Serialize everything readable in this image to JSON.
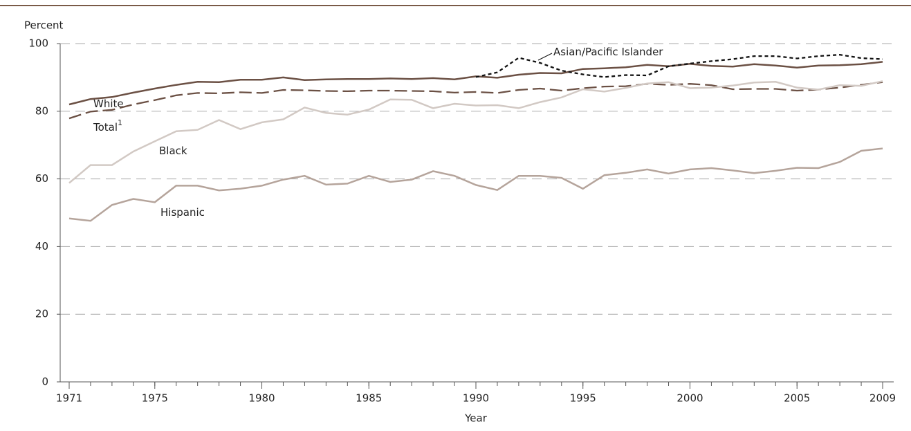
{
  "chart_data": {
    "type": "line",
    "y_label": "Percent",
    "x_label": "Year",
    "x": [
      1971,
      1972,
      1973,
      1974,
      1975,
      1976,
      1977,
      1978,
      1979,
      1980,
      1981,
      1982,
      1983,
      1984,
      1985,
      1986,
      1987,
      1988,
      1989,
      1990,
      1991,
      1992,
      1993,
      1994,
      1995,
      1996,
      1997,
      1998,
      1999,
      2000,
      2001,
      2002,
      2003,
      2004,
      2005,
      2006,
      2007,
      2008,
      2009
    ],
    "xlim": [
      1971,
      2009
    ],
    "xticks": [
      1971,
      1975,
      1980,
      1985,
      1990,
      1995,
      2000,
      2005,
      2009
    ],
    "ylim": [
      0,
      100
    ],
    "yticks": [
      0,
      20,
      40,
      60,
      80,
      100
    ],
    "grid": true,
    "series": [
      {
        "name": "White",
        "color": "#6b5044",
        "dash": "solid",
        "values": [
          82,
          83.6,
          84.2,
          85.5,
          86.7,
          87.8,
          88.7,
          88.6,
          89.3,
          89.3,
          90,
          89.2,
          89.4,
          89.5,
          89.5,
          89.7,
          89.5,
          89.8,
          89.4,
          90.3,
          89.9,
          90.8,
          91.3,
          91.2,
          92.5,
          92.7,
          93,
          93.7,
          93.3,
          94,
          93.4,
          93.2,
          93.9,
          93.5,
          92.9,
          93.5,
          93.6,
          93.9,
          94.6
        ]
      },
      {
        "name": "Total",
        "note": "1",
        "color": "#6b5044",
        "dash": "dashed",
        "values": [
          77.9,
          79.9,
          80.4,
          82,
          83.3,
          84.7,
          85.4,
          85.3,
          85.6,
          85.4,
          86.3,
          86.2,
          86,
          85.9,
          86.1,
          86.1,
          86,
          85.9,
          85.5,
          85.7,
          85.4,
          86.3,
          86.7,
          86.1,
          86.8,
          87.3,
          87.4,
          88.1,
          87.8,
          88.1,
          87.7,
          86.5,
          86.6,
          86.6,
          86.1,
          86.4,
          87,
          87.8,
          88.6
        ]
      },
      {
        "name": "Black",
        "color": "#d2c9c4",
        "dash": "solid",
        "values": [
          58.8,
          64.1,
          64.1,
          68.1,
          71.1,
          74.1,
          74.5,
          77.4,
          74.7,
          76.7,
          77.6,
          81.1,
          79.5,
          79,
          80.5,
          83.5,
          83.4,
          80.9,
          82.2,
          81.7,
          81.8,
          80.9,
          82.7,
          84.1,
          86.5,
          85.8,
          86.9,
          88.2,
          88.6,
          86.8,
          87,
          87.6,
          88.5,
          88.7,
          87,
          86.4,
          87.7,
          87.5,
          88.9
        ]
      },
      {
        "name": "Hispanic",
        "color": "#b5a49b",
        "dash": "solid",
        "values": [
          48.3,
          47.6,
          52.3,
          54.1,
          53.1,
          58,
          58,
          56.6,
          57.1,
          58,
          59.8,
          60.9,
          58.3,
          58.6,
          60.9,
          59.1,
          59.8,
          62.3,
          60.9,
          58.2,
          56.7,
          60.9,
          60.9,
          60.3,
          57.1,
          61.1,
          61.8,
          62.8,
          61.6,
          62.8,
          63.2,
          62.5,
          61.7,
          62.4,
          63.3,
          63.2,
          65,
          68.3,
          69
        ]
      },
      {
        "name": "Asian/Pacific Islander",
        "color": "#111111",
        "dash": "dotted",
        "values": [
          null,
          null,
          null,
          null,
          null,
          null,
          null,
          null,
          null,
          null,
          null,
          null,
          null,
          null,
          null,
          null,
          null,
          null,
          null,
          90.1,
          91.5,
          95.8,
          94.3,
          92,
          90.9,
          90.1,
          90.7,
          90.6,
          93.3,
          94.1,
          94.8,
          95.4,
          96.3,
          96.3,
          95.6,
          96.3,
          96.7,
          95.7,
          95.4
        ]
      }
    ]
  }
}
